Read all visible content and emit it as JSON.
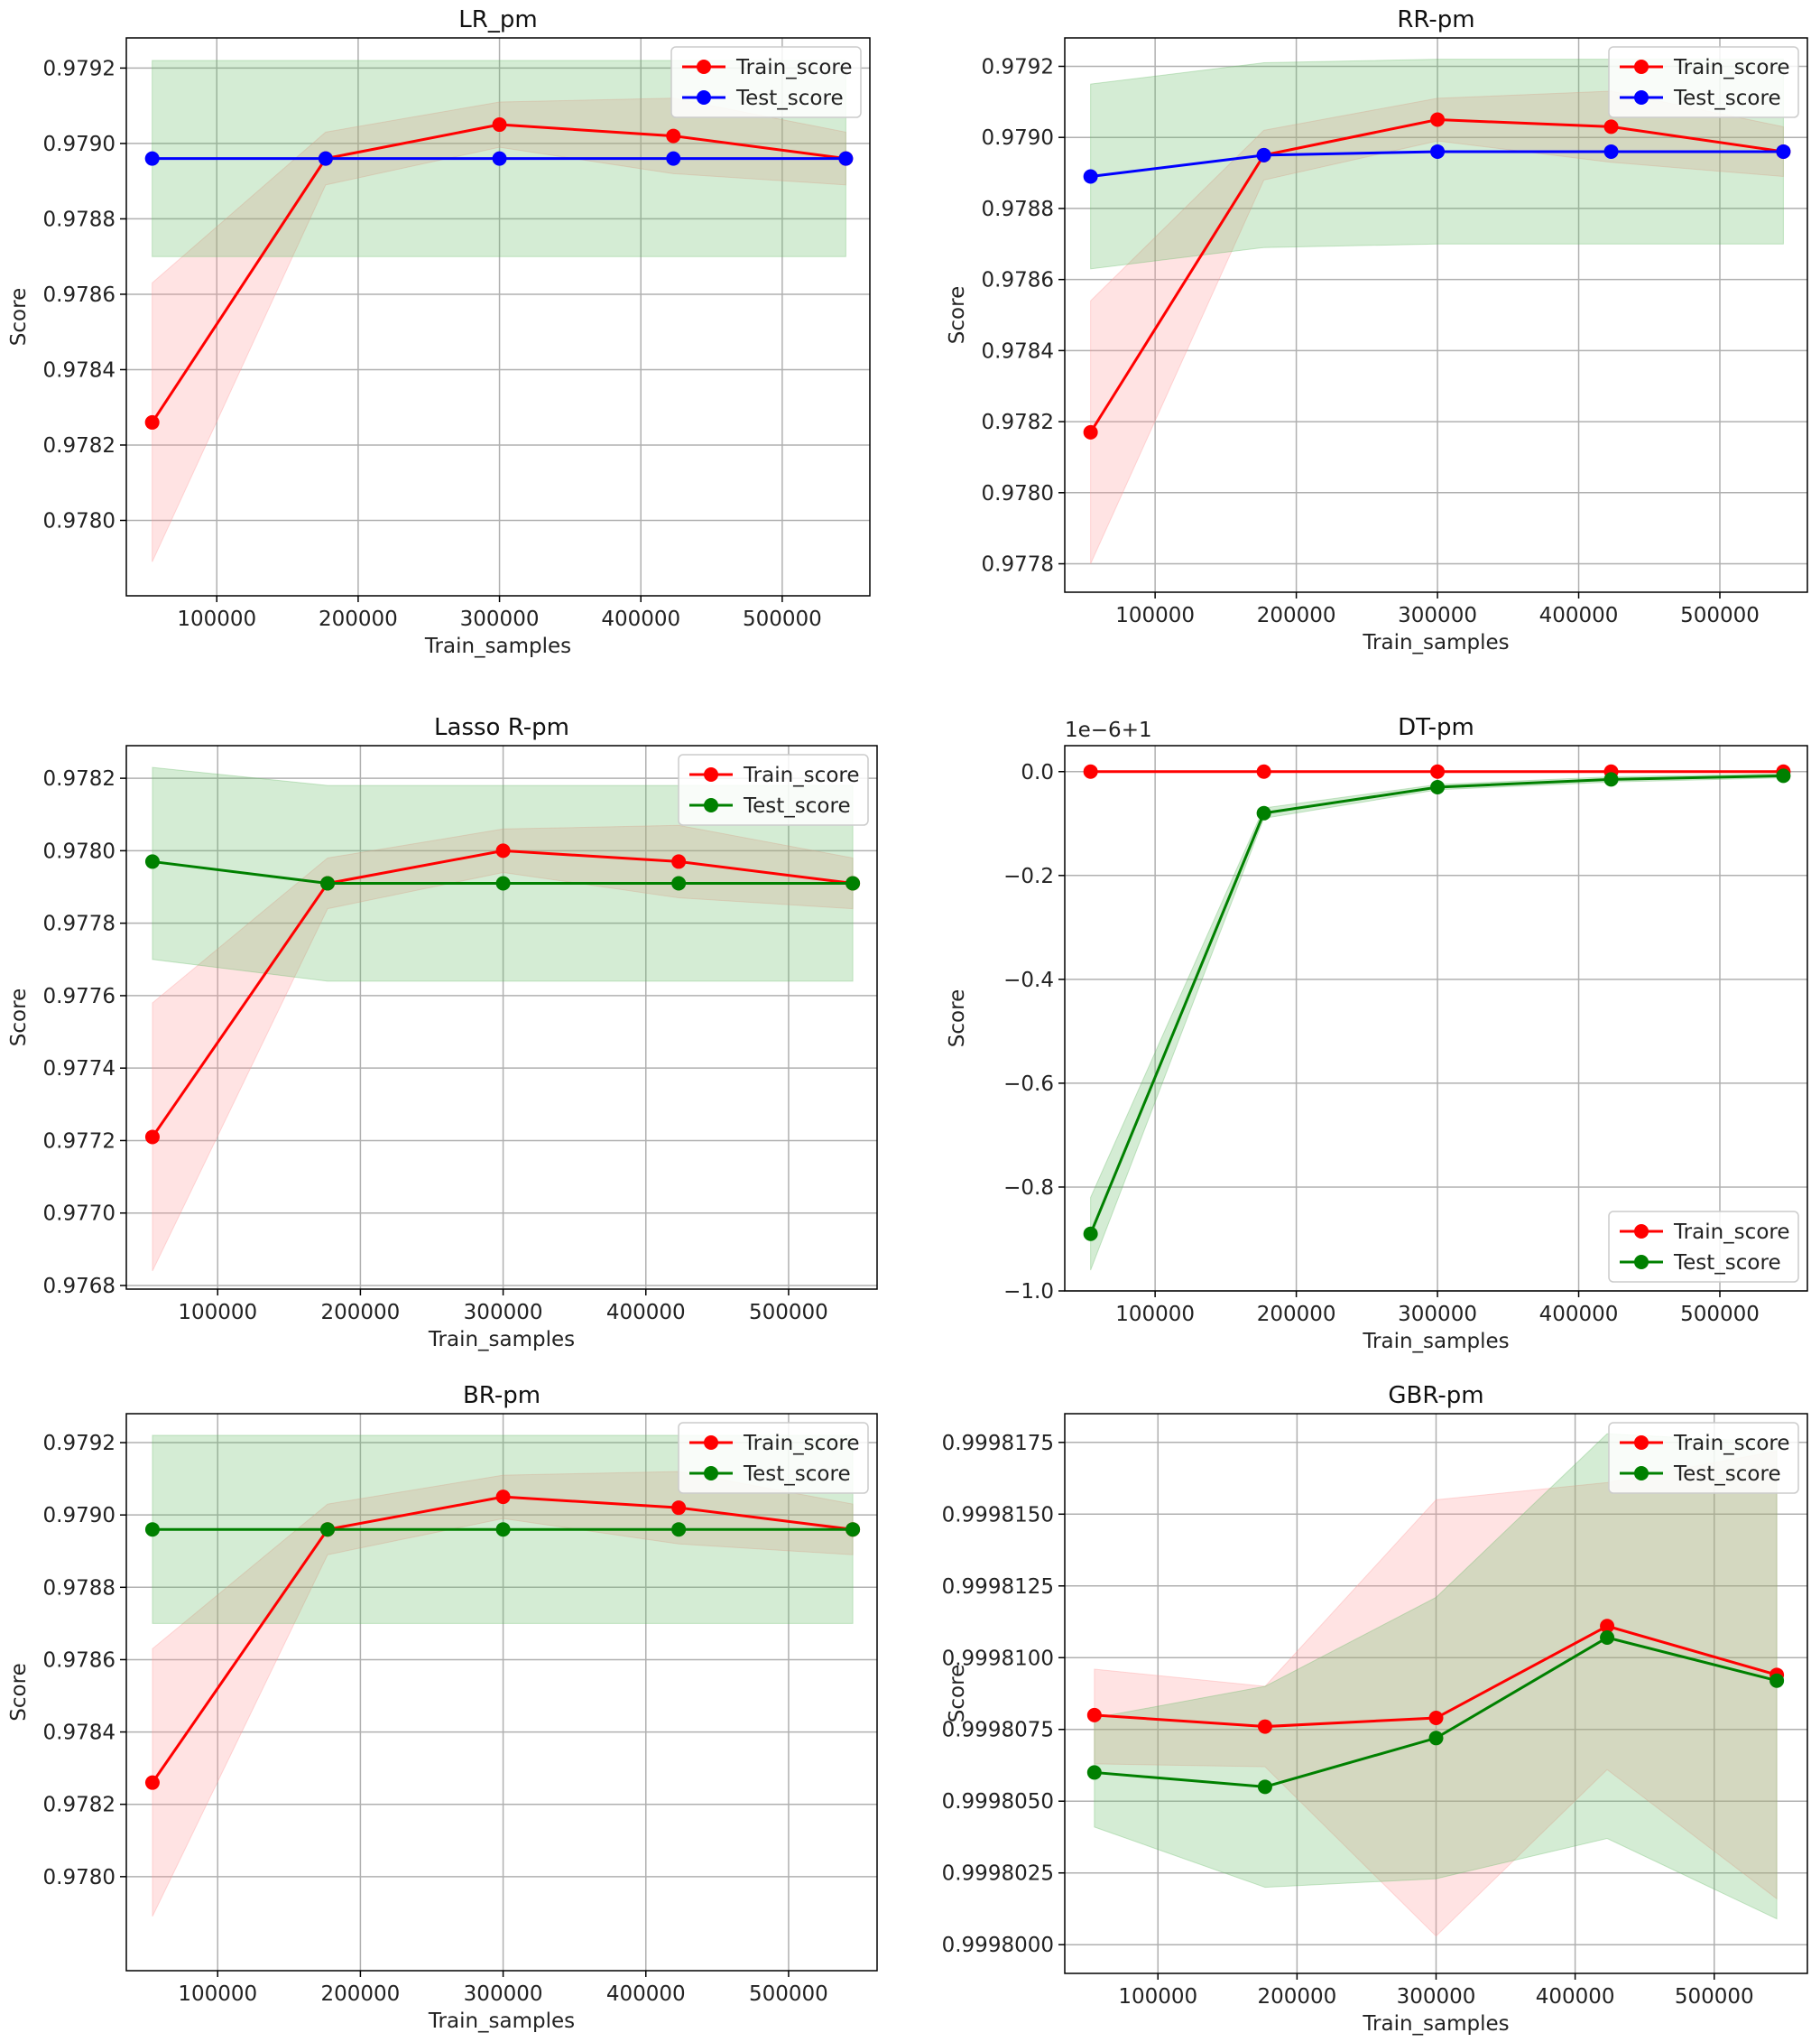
{
  "chart_data": [
    {
      "type": "line",
      "title": "LR_pm",
      "xlabel": "Train_samples",
      "ylabel": "Score",
      "xlim": [
        36000,
        562000
      ],
      "ylim": [
        0.9778,
        0.97928
      ],
      "xticks": [
        100000,
        200000,
        300000,
        400000,
        500000
      ],
      "xtick_labels": [
        "100000",
        "200000",
        "300000",
        "400000",
        "500000"
      ],
      "yticks": [
        0.978,
        0.9782,
        0.9784,
        0.9786,
        0.9788,
        0.979,
        0.9792
      ],
      "ytick_labels": [
        "0.9780",
        "0.9782",
        "0.9784",
        "0.9786",
        "0.9788",
        "0.9790",
        "0.9792"
      ],
      "ytick_offset": "",
      "grid": true,
      "legend": "top-right",
      "x": [
        54300,
        177000,
        300000,
        423000,
        545000
      ],
      "series": [
        {
          "name": "Train_score",
          "color": "#ff0000",
          "fill": "#ff9999",
          "values": [
            0.97826,
            0.97896,
            0.97905,
            0.97902,
            0.97896
          ],
          "lower": [
            0.97789,
            0.97889,
            0.97899,
            0.97892,
            0.97889
          ],
          "upper": [
            0.97863,
            0.97903,
            0.97911,
            0.97912,
            0.97903
          ]
        },
        {
          "name": "Test_score",
          "color": "#0000ff",
          "fill": "#66bb66",
          "values": [
            0.97896,
            0.97896,
            0.97896,
            0.97896,
            0.97896
          ],
          "lower": [
            0.9787,
            0.9787,
            0.9787,
            0.9787,
            0.9787
          ],
          "upper": [
            0.97922,
            0.97922,
            0.97922,
            0.97922,
            0.97922
          ]
        }
      ]
    },
    {
      "type": "line",
      "title": "RR-pm",
      "xlabel": "Train_samples",
      "ylabel": "Score",
      "xlim": [
        36000,
        562000
      ],
      "ylim": [
        0.97772,
        0.97928
      ],
      "xticks": [
        100000,
        200000,
        300000,
        400000,
        500000
      ],
      "xtick_labels": [
        "100000",
        "200000",
        "300000",
        "400000",
        "500000"
      ],
      "yticks": [
        0.9778,
        0.978,
        0.9782,
        0.9784,
        0.9786,
        0.9788,
        0.979,
        0.9792
      ],
      "ytick_labels": [
        "0.9778",
        "0.9780",
        "0.9782",
        "0.9784",
        "0.9786",
        "0.9788",
        "0.9790",
        "0.9792"
      ],
      "ytick_offset": "",
      "grid": true,
      "legend": "top-right",
      "x": [
        54300,
        177000,
        300000,
        423000,
        545000
      ],
      "series": [
        {
          "name": "Train_score",
          "color": "#ff0000",
          "fill": "#ff9999",
          "values": [
            0.97817,
            0.97895,
            0.97905,
            0.97903,
            0.97896
          ],
          "lower": [
            0.9778,
            0.97888,
            0.97899,
            0.97893,
            0.97889
          ],
          "upper": [
            0.97854,
            0.97902,
            0.97911,
            0.97913,
            0.97903
          ]
        },
        {
          "name": "Test_score",
          "color": "#0000ff",
          "fill": "#66bb66",
          "values": [
            0.97889,
            0.97895,
            0.97896,
            0.97896,
            0.97896
          ],
          "lower": [
            0.97863,
            0.97869,
            0.9787,
            0.9787,
            0.9787
          ],
          "upper": [
            0.97915,
            0.97921,
            0.97922,
            0.97922,
            0.97922
          ]
        }
      ]
    },
    {
      "type": "line",
      "title": "Lasso R-pm",
      "xlabel": "Train_samples",
      "ylabel": "Score",
      "xlim": [
        36000,
        562000
      ],
      "ylim": [
        0.97679,
        0.97829
      ],
      "xticks": [
        100000,
        200000,
        300000,
        400000,
        500000
      ],
      "xtick_labels": [
        "100000",
        "200000",
        "300000",
        "400000",
        "500000"
      ],
      "yticks": [
        0.9768,
        0.977,
        0.9772,
        0.9774,
        0.9776,
        0.9778,
        0.978,
        0.9782
      ],
      "ytick_labels": [
        "0.9768",
        "0.9770",
        "0.9772",
        "0.9774",
        "0.9776",
        "0.9778",
        "0.9780",
        "0.9782"
      ],
      "ytick_offset": "",
      "grid": true,
      "legend": "top-right",
      "x": [
        54300,
        177000,
        300000,
        423000,
        545000
      ],
      "series": [
        {
          "name": "Train_score",
          "color": "#ff0000",
          "fill": "#ff9999",
          "values": [
            0.97721,
            0.97791,
            0.978,
            0.97797,
            0.97791
          ],
          "lower": [
            0.97684,
            0.97784,
            0.97794,
            0.97787,
            0.97784
          ],
          "upper": [
            0.97758,
            0.97798,
            0.97806,
            0.97807,
            0.97798
          ]
        },
        {
          "name": "Test_score",
          "color": "#008000",
          "fill": "#66bb66",
          "values": [
            0.97797,
            0.97791,
            0.97791,
            0.97791,
            0.97791
          ],
          "lower": [
            0.9777,
            0.97764,
            0.97764,
            0.97764,
            0.97764
          ],
          "upper": [
            0.97823,
            0.97818,
            0.97818,
            0.97818,
            0.97818
          ]
        }
      ]
    },
    {
      "type": "line",
      "title": "DT-pm",
      "xlabel": "Train_samples",
      "ylabel": "Score",
      "xlim": [
        36000,
        562000
      ],
      "ylim": [
        -1.0,
        0.05
      ],
      "xticks": [
        100000,
        200000,
        300000,
        400000,
        500000
      ],
      "xtick_labels": [
        "100000",
        "200000",
        "300000",
        "400000",
        "500000"
      ],
      "yticks": [
        -1.0,
        -0.8,
        -0.6,
        -0.4,
        -0.2,
        0.0
      ],
      "ytick_labels": [
        "−1.0",
        "−0.8",
        "−0.6",
        "−0.4",
        "−0.2",
        "0.0"
      ],
      "ytick_offset": "1e−6+1",
      "grid": true,
      "legend": "lower-right",
      "x": [
        54300,
        177000,
        300000,
        423000,
        545000
      ],
      "series": [
        {
          "name": "Train_score",
          "color": "#ff0000",
          "fill": "#ff9999",
          "values": [
            0.0,
            0.0,
            0.0,
            0.0,
            0.0
          ],
          "lower": [
            0.0,
            0.0,
            0.0,
            0.0,
            0.0
          ],
          "upper": [
            0.0,
            0.0,
            0.0,
            0.0,
            0.0
          ]
        },
        {
          "name": "Test_score",
          "color": "#008000",
          "fill": "#66bb66",
          "values": [
            -0.89,
            -0.08,
            -0.03,
            -0.015,
            -0.008
          ],
          "lower": [
            -0.96,
            -0.09,
            -0.035,
            -0.02,
            -0.012
          ],
          "upper": [
            -0.82,
            -0.07,
            -0.025,
            -0.01,
            -0.004
          ]
        }
      ]
    },
    {
      "type": "line",
      "title": "BR-pm",
      "xlabel": "Train_samples",
      "ylabel": "Score",
      "xlim": [
        36000,
        562000
      ],
      "ylim": [
        0.97774,
        0.97928
      ],
      "xticks": [
        100000,
        200000,
        300000,
        400000,
        500000
      ],
      "xtick_labels": [
        "100000",
        "200000",
        "300000",
        "400000",
        "500000"
      ],
      "yticks": [
        0.978,
        0.9782,
        0.9784,
        0.9786,
        0.9788,
        0.979,
        0.9792
      ],
      "ytick_labels": [
        "0.9780",
        "0.9782",
        "0.9784",
        "0.9786",
        "0.9788",
        "0.9790",
        "0.9792"
      ],
      "ytick_offset": "",
      "grid": true,
      "legend": "top-right",
      "x": [
        54300,
        177000,
        300000,
        423000,
        545000
      ],
      "series": [
        {
          "name": "Train_score",
          "color": "#ff0000",
          "fill": "#ff9999",
          "values": [
            0.97826,
            0.97896,
            0.97905,
            0.97902,
            0.97896
          ],
          "lower": [
            0.97789,
            0.97889,
            0.97899,
            0.97892,
            0.97889
          ],
          "upper": [
            0.97863,
            0.97903,
            0.97911,
            0.97912,
            0.97903
          ]
        },
        {
          "name": "Test_score",
          "color": "#008000",
          "fill": "#66bb66",
          "values": [
            0.97896,
            0.97896,
            0.97896,
            0.97896,
            0.97896
          ],
          "lower": [
            0.9787,
            0.9787,
            0.9787,
            0.9787,
            0.9787
          ],
          "upper": [
            0.97922,
            0.97922,
            0.97922,
            0.97922,
            0.97922
          ]
        }
      ]
    },
    {
      "type": "line",
      "title": "GBR-pm",
      "xlabel": "Train_samples",
      "ylabel": "Score",
      "xlim": [
        33000,
        567000
      ],
      "ylim": [
        0.999799,
        0.9998185
      ],
      "xticks": [
        100000,
        200000,
        300000,
        400000,
        500000
      ],
      "xtick_labels": [
        "100000",
        "200000",
        "300000",
        "400000",
        "500000"
      ],
      "yticks": [
        0.9998,
        0.9998025,
        0.999805,
        0.9998075,
        0.99981,
        0.9998125,
        0.999815,
        0.9998175
      ],
      "ytick_labels": [
        "0.9998000",
        "0.9998025",
        "0.9998050",
        "0.9998075",
        "0.9998100",
        "0.9998125",
        "0.9998150",
        "0.9998175"
      ],
      "ytick_offset": "",
      "grid": true,
      "legend": "top-right",
      "x": [
        54300,
        177000,
        300000,
        423000,
        545000
      ],
      "series": [
        {
          "name": "Train_score",
          "color": "#ff0000",
          "fill": "#ff9999",
          "values": [
            0.999808,
            0.9998076,
            0.9998079,
            0.9998111,
            0.9998094
          ],
          "lower": [
            0.9998063,
            0.9998062,
            0.9998003,
            0.9998061,
            0.9998016
          ],
          "upper": [
            0.9998096,
            0.999809,
            0.9998155,
            0.9998161,
            0.9998172
          ]
        },
        {
          "name": "Test_score",
          "color": "#008000",
          "fill": "#66bb66",
          "values": [
            0.999806,
            0.9998055,
            0.9998072,
            0.9998107,
            0.9998092
          ],
          "lower": [
            0.9998041,
            0.999802,
            0.9998023,
            0.9998037,
            0.9998009
          ],
          "upper": [
            0.9998079,
            0.999809,
            0.9998121,
            0.9998178,
            0.9998175
          ]
        }
      ]
    }
  ]
}
